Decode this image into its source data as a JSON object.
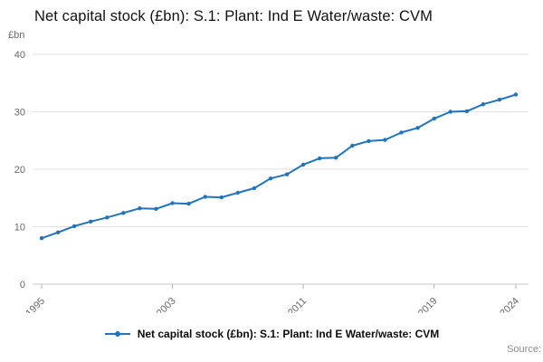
{
  "title": "Net capital stock (£bn): S.1: Plant: Ind E Water/waste: CVM",
  "y_unit_label": "£bn",
  "source_label": "Source:",
  "legend": {
    "label": "Net capital stock (£bn): S.1: Plant: Ind E Water/waste: CVM"
  },
  "colors": {
    "line": "#2073bc",
    "grid": "#e2e2e2",
    "baseline": "#c8c8c8",
    "tick": "#b0b0b0",
    "tick_text": "#666666"
  },
  "chart_data": {
    "type": "line",
    "title": "Net capital stock (£bn): S.1: Plant: Ind E Water/waste: CVM",
    "xlabel": "",
    "ylabel": "£bn",
    "ylim": [
      0,
      40
    ],
    "yticks": [
      0,
      10,
      20,
      30,
      40
    ],
    "xticks": [
      1995,
      2003,
      2011,
      2019,
      2024
    ],
    "grid": true,
    "legend_position": "bottom",
    "marker": "circle",
    "x": [
      1995,
      1996,
      1997,
      1998,
      1999,
      2000,
      2001,
      2002,
      2003,
      2004,
      2005,
      2006,
      2007,
      2008,
      2009,
      2010,
      2011,
      2012,
      2013,
      2014,
      2015,
      2016,
      2017,
      2018,
      2019,
      2020,
      2021,
      2022,
      2023,
      2024
    ],
    "series": [
      {
        "name": "Net capital stock (£bn): S.1: Plant: Ind E Water/waste: CVM",
        "values": [
          8.0,
          9.0,
          10.1,
          10.9,
          11.6,
          12.4,
          13.2,
          13.1,
          14.1,
          14.0,
          15.2,
          15.1,
          15.9,
          16.7,
          18.4,
          19.1,
          20.8,
          21.9,
          22.0,
          24.1,
          24.9,
          25.1,
          26.4,
          27.2,
          28.8,
          30.0,
          30.1,
          31.3,
          32.1,
          33.0
        ]
      }
    ]
  }
}
